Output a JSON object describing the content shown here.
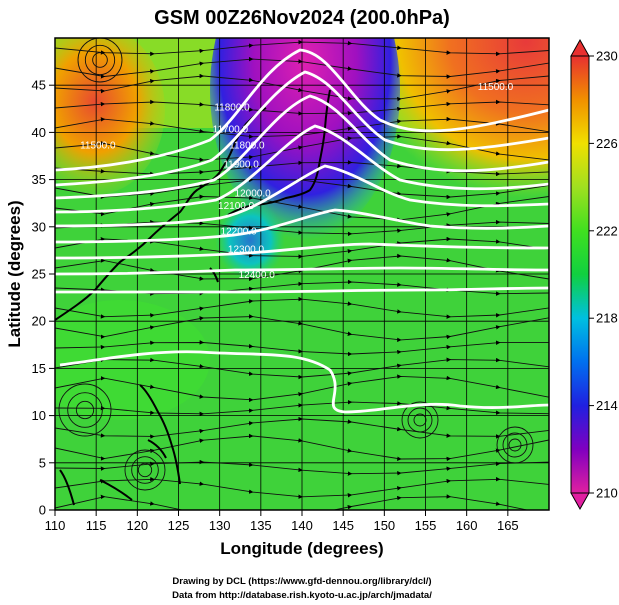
{
  "figure": {
    "title": "GSM 00Z26Nov2024 (200.0hPa)",
    "credit_line1": "Drawing by DCL (https://www.gfd-dennou.org/library/dcl/)",
    "credit_line2": "Data from http://database.rish.kyoto-u.ac.jp/arch/jmadata/"
  },
  "chart_data": {
    "type": "heatmap",
    "title": "GSM 00Z26Nov2024 (200.0hPa)",
    "xlabel": "Longitude (degrees)",
    "ylabel": "Latitude  (degrees)",
    "xlim": [
      110,
      170
    ],
    "ylim": [
      0,
      50
    ],
    "x_ticks": [
      "110",
      "115",
      "120",
      "125",
      "130",
      "135",
      "140",
      "145",
      "150",
      "155",
      "160",
      "165"
    ],
    "y_ticks": [
      "0",
      "5",
      "10",
      "15",
      "20",
      "25",
      "30",
      "35",
      "40",
      "45"
    ],
    "grid": true,
    "colorbar": {
      "ticks": [
        "230",
        "226",
        "222",
        "218",
        "214",
        "210"
      ],
      "range": [
        210,
        230
      ],
      "colors_low_to_high": [
        "#e020a0",
        "#8000c0",
        "#2020e0",
        "#00a0ff",
        "#00d0c0",
        "#10d040",
        "#40e020",
        "#a0e020",
        "#f0e000",
        "#f0a000",
        "#f06020",
        "#e83030"
      ]
    },
    "contour_labels": [
      {
        "text": "11500.0",
        "lon": 163.5,
        "lat": 44.5
      },
      {
        "text": "11500.0",
        "lon": 115.2,
        "lat": 38.3
      },
      {
        "text": "11800.0",
        "lon": 131.5,
        "lat": 42.3
      },
      {
        "text": "11700.0",
        "lon": 131.3,
        "lat": 40.0
      },
      {
        "text": "11800.0",
        "lon": 133.3,
        "lat": 38.3
      },
      {
        "text": "11900.0",
        "lon": 132.6,
        "lat": 36.3
      },
      {
        "text": "12000.0",
        "lon": 134.0,
        "lat": 33.2
      },
      {
        "text": "12100.0",
        "lon": 132.0,
        "lat": 31.9
      },
      {
        "text": "12200.0",
        "lon": 132.3,
        "lat": 29.2
      },
      {
        "text": "12300.0",
        "lon": 133.2,
        "lat": 27.3
      },
      {
        "text": "12400.0",
        "lon": 134.5,
        "lat": 24.6
      }
    ]
  }
}
